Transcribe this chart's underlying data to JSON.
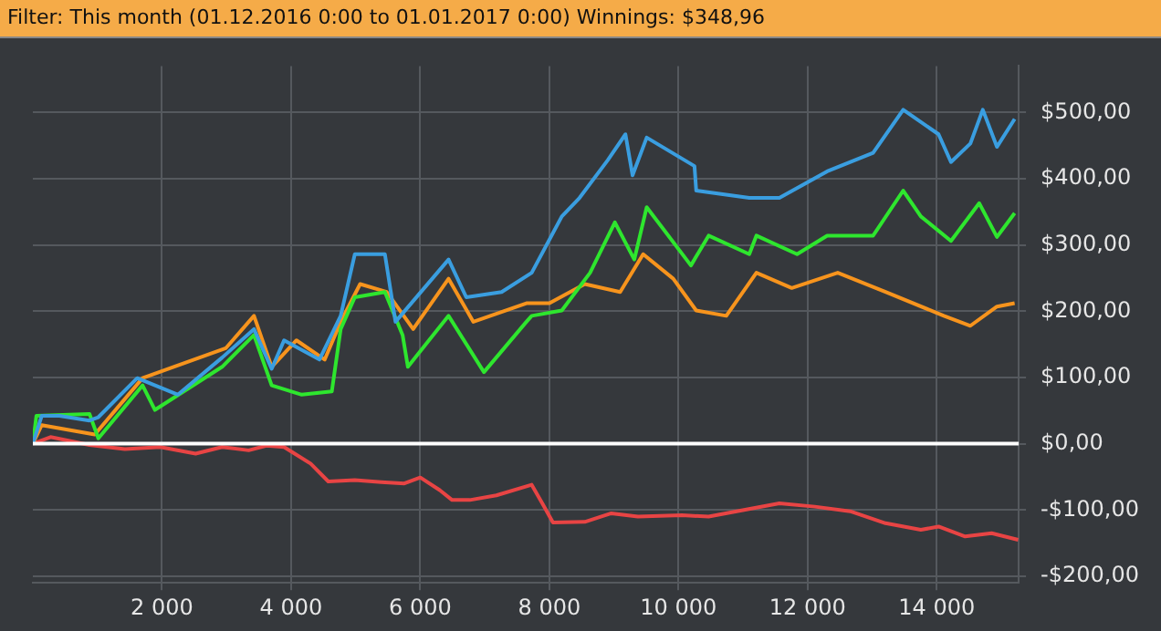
{
  "chart_data": {
    "type": "line",
    "title": "Filter: This month (01.12.2016 0:00 to 01.01.2017 0:00)  Winnings: $348,96",
    "series": [
      {
        "color": "#3a9ee0",
        "x": [
          0,
          137,
          411,
          877,
          1014,
          1617,
          2247,
          2932,
          3425,
          3699,
          3891,
          4439,
          4768,
          4987,
          5453,
          5617,
          6439,
          6713,
          7261,
          7727,
          8193,
          8467,
          8905,
          9179,
          9289,
          9508,
          10248,
          10275,
          11097,
          11563,
          12303,
          13015,
          13481,
          14029,
          14221,
          14522,
          14714,
          14933,
          15207
        ],
        "values": [
          0,
          42,
          42,
          35,
          40,
          99,
          74,
          130,
          173,
          113,
          156,
          127,
          193,
          286,
          286,
          184,
          278,
          221,
          229,
          258,
          343,
          371,
          428,
          467,
          405,
          462,
          419,
          382,
          371,
          371,
          411,
          439,
          504,
          467,
          425,
          453,
          504,
          448,
          490
        ]
      },
      {
        "color": "#2ee62e",
        "x": [
          0,
          55,
          877,
          1014,
          1699,
          1891,
          2932,
          3425,
          3699,
          4165,
          4631,
          4768,
          4987,
          5453,
          5727,
          5809,
          6439,
          6987,
          7645,
          7727,
          8193,
          8631,
          9015,
          9316,
          9508,
          10193,
          10467,
          11097,
          11207,
          11837,
          12303,
          13015,
          13481,
          13755,
          14221,
          14659,
          14933,
          15207
        ],
        "values": [
          0,
          42,
          45,
          8,
          88,
          51,
          116,
          164,
          88,
          74,
          79,
          173,
          221,
          229,
          164,
          116,
          193,
          108,
          184,
          193,
          201,
          258,
          334,
          278,
          357,
          269,
          314,
          286,
          314,
          286,
          314,
          314,
          382,
          343,
          306,
          363,
          312,
          348
        ]
      },
      {
        "color": "#f7941d",
        "x": [
          0,
          137,
          959,
          1699,
          2987,
          3425,
          3699,
          4083,
          4521,
          4768,
          5069,
          5480,
          5891,
          6439,
          6823,
          7645,
          8001,
          8549,
          9097,
          9453,
          9919,
          10275,
          10741,
          11207,
          11755,
          12467,
          13207,
          14111,
          14522,
          14933,
          15207
        ],
        "values": [
          0,
          28,
          14,
          99,
          144,
          193,
          116,
          156,
          127,
          184,
          241,
          229,
          173,
          249,
          184,
          212,
          212,
          241,
          229,
          286,
          249,
          201,
          193,
          258,
          235,
          258,
          229,
          193,
          178,
          207,
          212
        ]
      },
      {
        "color": "#e84444",
        "x": [
          0,
          274,
          877,
          1425,
          1973,
          2521,
          2932,
          3343,
          3617,
          3891,
          4302,
          4576,
          4987,
          5398,
          5754,
          6001,
          6302,
          6494,
          6768,
          7179,
          7727,
          7891,
          8056,
          8549,
          8960,
          9371,
          10056,
          10467,
          11015,
          11563,
          12111,
          12659,
          13207,
          13755,
          14029,
          14440,
          14851,
          15262
        ],
        "values": [
          0,
          10,
          -2,
          -8,
          -5,
          -15,
          -5,
          -10,
          -3,
          -5,
          -30,
          -57,
          -55,
          -58,
          -60,
          -51,
          -70,
          -85,
          -85,
          -78,
          -62,
          -90,
          -119,
          -118,
          -105,
          -110,
          -108,
          -110,
          -100,
          -90,
          -95,
          -102,
          -120,
          -130,
          -125,
          -140,
          -135,
          -145
        ]
      }
    ],
    "xlim": [
      0,
      15270
    ],
    "ylim": [
      -210,
      570
    ],
    "xticks": [
      {
        "value": 2000,
        "label": "2 000"
      },
      {
        "value": 4000,
        "label": "4 000"
      },
      {
        "value": 6000,
        "label": "6 000"
      },
      {
        "value": 8000,
        "label": "8 000"
      },
      {
        "value": 10000,
        "label": "10 000"
      },
      {
        "value": 12000,
        "label": "12 000"
      },
      {
        "value": 14000,
        "label": "14 000"
      }
    ],
    "yticks": [
      {
        "value": -200,
        "label": "-$200,00"
      },
      {
        "value": -100,
        "label": "-$100,00"
      },
      {
        "value": 0,
        "label": "$0,00"
      },
      {
        "value": 100,
        "label": "$100,00"
      },
      {
        "value": 200,
        "label": "$200,00"
      },
      {
        "value": 300,
        "label": "$300,00"
      },
      {
        "value": 400,
        "label": "$400,00"
      },
      {
        "value": 500,
        "label": "$500,00"
      }
    ],
    "ref_lines": [
      {
        "axis": "y",
        "value": 0,
        "color": "#ffffff"
      }
    ],
    "grid": true,
    "legend": false,
    "marker": "none",
    "line_style": "solid"
  }
}
